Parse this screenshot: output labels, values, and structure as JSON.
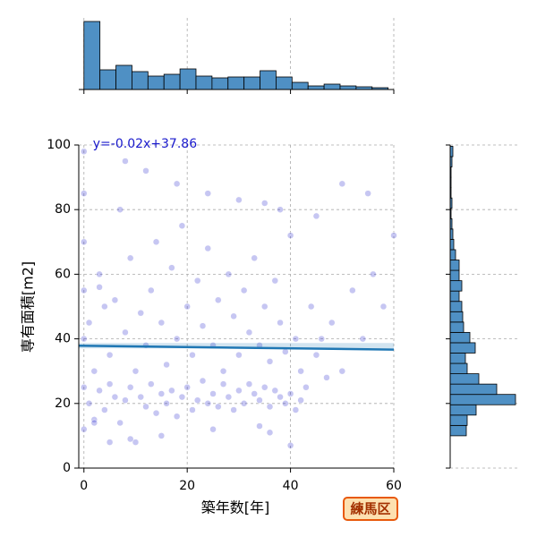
{
  "chart_data": {
    "type": "jointplot",
    "xlabel": "築年数[年]",
    "ylabel": "専有面積[m2]",
    "badge": "練馬区",
    "annotation": "y=-0.02x+37.86",
    "regression": {
      "slope": -0.02,
      "intercept": 37.86,
      "color": "#1f77b4"
    },
    "xlim": [
      -1,
      60
    ],
    "xticks": [
      0,
      20,
      40,
      60
    ],
    "ylim": [
      0,
      100
    ],
    "yticks": [
      0,
      20,
      40,
      60,
      80,
      100
    ],
    "grid": true,
    "point_color": "#1a1acc",
    "hist_color": "#4f90c4",
    "x": [
      0,
      0,
      0,
      0,
      0,
      0,
      0,
      1,
      1,
      2,
      2,
      3,
      3,
      4,
      4,
      5,
      5,
      6,
      6,
      7,
      7,
      8,
      8,
      9,
      9,
      10,
      10,
      11,
      11,
      12,
      12,
      13,
      13,
      14,
      14,
      15,
      15,
      16,
      16,
      17,
      17,
      18,
      18,
      19,
      19,
      20,
      20,
      21,
      21,
      22,
      22,
      23,
      23,
      24,
      24,
      25,
      25,
      26,
      26,
      27,
      27,
      28,
      28,
      29,
      29,
      30,
      30,
      31,
      31,
      32,
      32,
      33,
      33,
      34,
      34,
      35,
      35,
      36,
      36,
      37,
      37,
      38,
      38,
      39,
      39,
      40,
      40,
      41,
      41,
      42,
      42,
      43,
      44,
      45,
      46,
      47,
      48,
      50,
      52,
      54,
      56,
      58,
      60,
      3,
      8,
      12,
      18,
      24,
      30,
      35,
      38,
      45,
      50,
      55,
      5,
      15,
      25,
      34,
      2,
      9,
      36,
      40
    ],
    "y": [
      12,
      25,
      40,
      55,
      70,
      85,
      98,
      20,
      45,
      15,
      30,
      24,
      60,
      18,
      50,
      26,
      35,
      22,
      52,
      14,
      80,
      21,
      42,
      25,
      65,
      8,
      30,
      22,
      48,
      19,
      38,
      26,
      55,
      17,
      70,
      23,
      45,
      20,
      32,
      24,
      62,
      16,
      40,
      22,
      75,
      25,
      50,
      18,
      35,
      21,
      58,
      27,
      44,
      20,
      68,
      23,
      38,
      19,
      52,
      26,
      30,
      22,
      60,
      18,
      47,
      24,
      35,
      20,
      55,
      26,
      42,
      23,
      65,
      21,
      38,
      25,
      50,
      19,
      33,
      24,
      58,
      22,
      45,
      20,
      36,
      23,
      72,
      18,
      40,
      21,
      30,
      25,
      50,
      35,
      40,
      28,
      45,
      30,
      55,
      40,
      60,
      50,
      72,
      56,
      95,
      92,
      88,
      85,
      83,
      82,
      80,
      78,
      88,
      85,
      8,
      10,
      12,
      13,
      14,
      9,
      11,
      7
    ],
    "top_hist": {
      "bins": [
        0,
        3.1,
        6.2,
        9.3,
        12.4,
        15.5,
        18.6,
        21.7,
        24.8,
        27.9,
        31,
        34.1,
        37.2,
        40.3,
        43.4,
        46.5,
        49.6,
        52.7,
        55.8,
        58.9
      ],
      "counts": [
        76,
        22,
        27,
        20,
        15,
        17,
        23,
        15,
        13,
        14,
        14,
        21,
        14,
        8,
        4,
        6,
        4,
        3,
        2
      ]
    },
    "right_hist": {
      "bins": [
        10,
        13.2,
        16.4,
        19.6,
        22.8,
        26,
        29.2,
        32.4,
        35.6,
        38.8,
        42,
        45.2,
        48.4,
        51.6,
        54.8,
        58,
        61.2,
        64.4,
        67.6,
        70.8,
        74,
        77.2,
        80.4,
        83.6,
        86.8,
        90,
        93.2,
        96.4,
        99.6
      ],
      "counts": [
        18,
        19,
        29,
        73,
        52,
        32,
        19,
        17,
        28,
        22,
        15,
        14,
        13,
        10,
        13,
        10,
        10,
        6,
        4,
        3,
        2,
        1,
        2,
        1,
        1,
        1,
        2,
        3
      ]
    }
  }
}
